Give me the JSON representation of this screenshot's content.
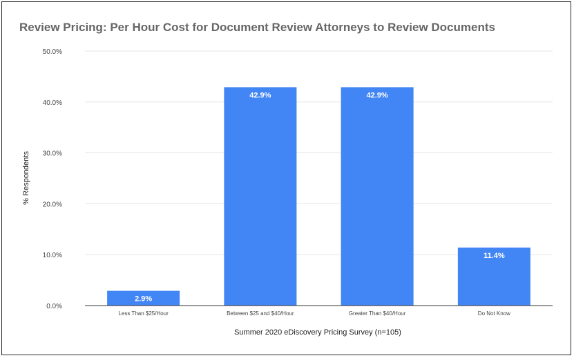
{
  "chart_data": {
    "type": "bar",
    "title": "Review Pricing: Per Hour Cost for Document Review Attorneys to Review Documents",
    "xlabel": "Summer 2020 eDiscovery Pricing Survey (n=105)",
    "ylabel": "% Respondents",
    "categories": [
      "Less Than $25/Hour",
      "Between $25 and $40/Hour",
      "Greater Than $40/Hour",
      "Do Not Know"
    ],
    "values": [
      2.9,
      42.9,
      42.9,
      11.4
    ],
    "value_labels": [
      "2.9%",
      "42.9%",
      "42.9%",
      "11.4%"
    ],
    "ylim": [
      0,
      50
    ],
    "yticks": [
      0,
      10,
      20,
      30,
      40,
      50
    ],
    "ytick_labels": [
      "0.0%",
      "10.0%",
      "20.0%",
      "30.0%",
      "40.0%",
      "50.0%"
    ],
    "grid": true,
    "legend": "none",
    "bar_color": "#4285f4"
  }
}
